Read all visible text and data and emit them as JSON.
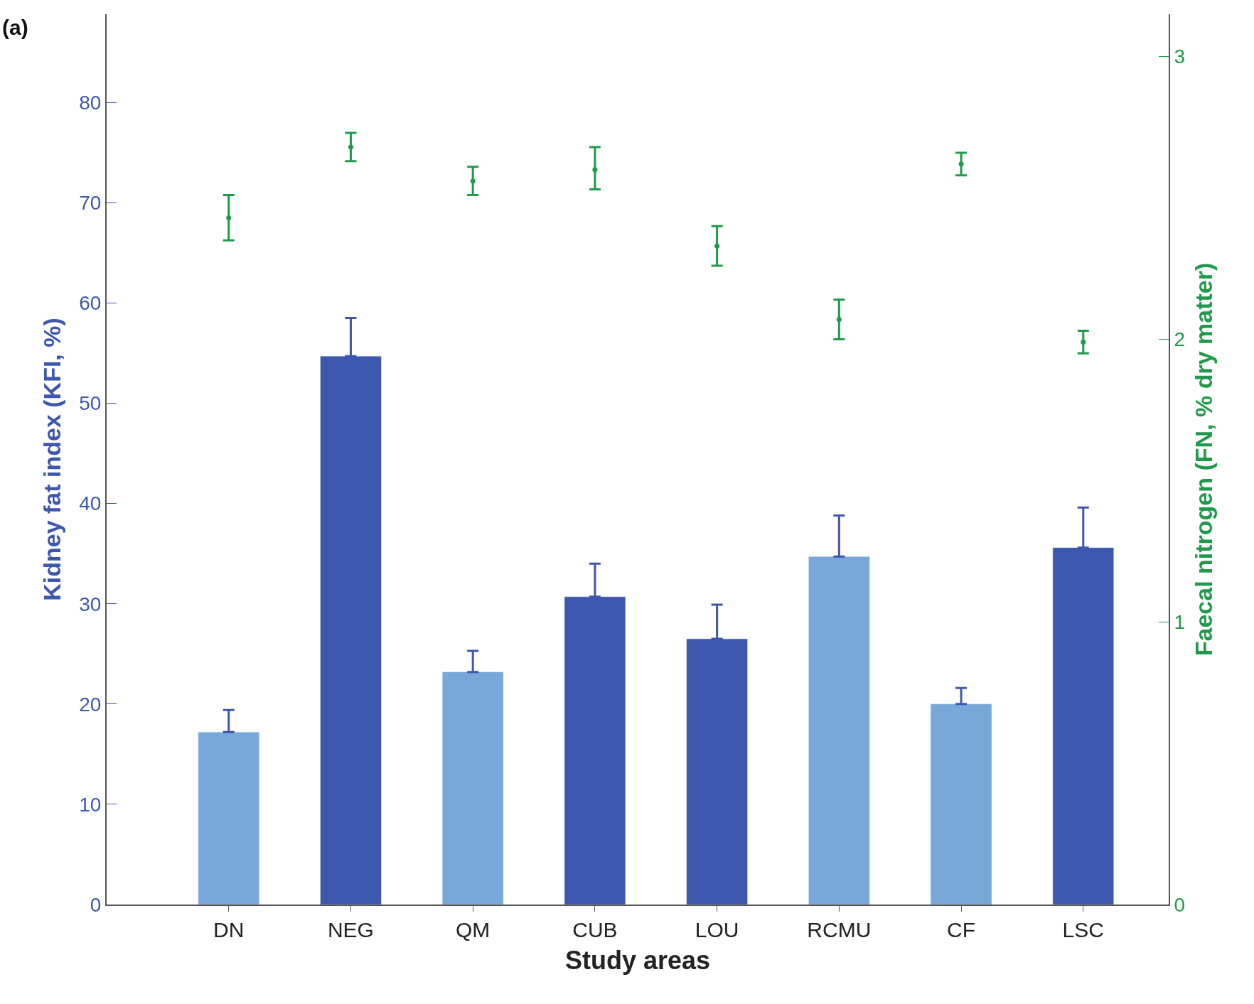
{
  "chart_data": {
    "type": "bar",
    "xlabel": "Study areas",
    "ylabel": "Kidney fat index (KFI, %)",
    "y2label": "Faecal nitrogen (FN, % dry matter)",
    "annotations": [
      "(a)"
    ],
    "categories": [
      "DN",
      "NEG",
      "QM",
      "CUB",
      "LOU",
      "RCMU",
      "CF",
      "LSC"
    ],
    "series": [
      {
        "color": "#3d57ae",
        "colors": [
          "#78a8d8",
          "#3d57ae",
          "#78a8d8",
          "#3d57ae",
          "#3d57ae",
          "#78a8d8",
          "#78a8d8",
          "#3d57ae"
        ],
        "values": [
          17.2,
          54.7,
          23.2,
          30.7,
          26.5,
          34.7,
          20.0,
          35.6
        ],
        "errors": [
          [
            17.2,
            19.4
          ],
          [
            54.7,
            58.5
          ],
          [
            23.2,
            25.3
          ],
          [
            30.7,
            34.0
          ],
          [
            26.5,
            29.9
          ],
          [
            34.7,
            38.8
          ],
          [
            20.0,
            21.6
          ],
          [
            35.6,
            39.6
          ]
        ]
      },
      {
        "type": "scatter",
        "axis": "y2",
        "color": "#1f9a4a",
        "values": [
          2.43,
          2.68,
          2.56,
          2.6,
          2.33,
          2.07,
          2.62,
          1.99
        ],
        "errors": [
          [
            2.35,
            2.51
          ],
          [
            2.63,
            2.73
          ],
          [
            2.51,
            2.61
          ],
          [
            2.53,
            2.68
          ],
          [
            2.26,
            2.4
          ],
          [
            2.0,
            2.14
          ],
          [
            2.58,
            2.66
          ],
          [
            1.95,
            2.03
          ]
        ]
      }
    ],
    "ylim": [
      0,
      88.8
    ],
    "yticks": [
      0,
      10,
      20,
      30,
      40,
      50,
      60,
      70,
      80
    ],
    "y2ticks": [
      0,
      1,
      2,
      3
    ],
    "y2lim": [
      0,
      3.15
    ]
  }
}
